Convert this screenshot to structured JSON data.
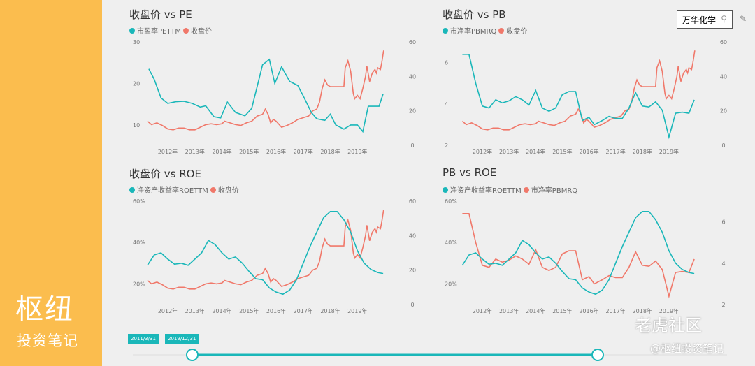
{
  "brand": {
    "name": "枢纽",
    "subtitle": "投资笔记"
  },
  "search": {
    "value": "万华化学"
  },
  "slider": {
    "start": "2011/3/31",
    "end": "2019/12/31"
  },
  "watermark": {
    "site": "老虎社区",
    "author": "@枢纽投资笔记"
  },
  "colors": {
    "teal": "#1ab7b9",
    "salmon": "#f0786a"
  },
  "price": [
    [
      2011.25,
      14
    ],
    [
      2011.4,
      12
    ],
    [
      2011.6,
      13
    ],
    [
      2011.8,
      11.5
    ],
    [
      2012.0,
      9.5
    ],
    [
      2012.2,
      9
    ],
    [
      2012.4,
      10
    ],
    [
      2012.6,
      10
    ],
    [
      2012.8,
      9
    ],
    [
      2013.0,
      9
    ],
    [
      2013.2,
      10.5
    ],
    [
      2013.4,
      12
    ],
    [
      2013.6,
      12.5
    ],
    [
      2013.8,
      12
    ],
    [
      2014.0,
      12.5
    ],
    [
      2014.1,
      14
    ],
    [
      2014.3,
      13
    ],
    [
      2014.5,
      12
    ],
    [
      2014.7,
      11.5
    ],
    [
      2014.9,
      13
    ],
    [
      2015.1,
      14
    ],
    [
      2015.3,
      17
    ],
    [
      2015.5,
      18
    ],
    [
      2015.6,
      21
    ],
    [
      2015.7,
      18
    ],
    [
      2015.8,
      13
    ],
    [
      2015.9,
      15
    ],
    [
      2016.0,
      14
    ],
    [
      2016.2,
      10.5
    ],
    [
      2016.4,
      11.5
    ],
    [
      2016.6,
      13
    ],
    [
      2016.8,
      15
    ],
    [
      2017.0,
      16
    ],
    [
      2017.2,
      17
    ],
    [
      2017.35,
      20
    ],
    [
      2017.5,
      21
    ],
    [
      2017.6,
      25
    ],
    [
      2017.7,
      33
    ],
    [
      2017.8,
      38
    ],
    [
      2017.9,
      35
    ],
    [
      2018.0,
      34
    ],
    [
      2018.5,
      34
    ],
    [
      2018.55,
      45
    ],
    [
      2018.65,
      49
    ],
    [
      2018.75,
      43
    ],
    [
      2018.85,
      30
    ],
    [
      2018.9,
      27
    ],
    [
      2019.0,
      29
    ],
    [
      2019.1,
      27
    ],
    [
      2019.2,
      33
    ],
    [
      2019.3,
      40
    ],
    [
      2019.35,
      46
    ],
    [
      2019.45,
      37
    ],
    [
      2019.55,
      42
    ],
    [
      2019.65,
      44
    ],
    [
      2019.7,
      42
    ],
    [
      2019.75,
      45
    ],
    [
      2019.85,
      44
    ],
    [
      2019.9,
      48
    ],
    [
      2019.97,
      55
    ]
  ],
  "pe": [
    [
      2011.3,
      23.5
    ],
    [
      2011.5,
      21
    ],
    [
      2011.75,
      16.5
    ],
    [
      2012.0,
      15.2
    ],
    [
      2012.3,
      15.6
    ],
    [
      2012.6,
      15.7
    ],
    [
      2012.9,
      15.2
    ],
    [
      2013.2,
      14.3
    ],
    [
      2013.4,
      14.6
    ],
    [
      2013.7,
      12
    ],
    [
      2013.95,
      11.7
    ],
    [
      2014.2,
      15.5
    ],
    [
      2014.5,
      13
    ],
    [
      2014.85,
      12.2
    ],
    [
      2015.1,
      14
    ],
    [
      2015.5,
      24.5
    ],
    [
      2015.75,
      25.8
    ],
    [
      2015.95,
      20
    ],
    [
      2016.2,
      24
    ],
    [
      2016.5,
      20.5
    ],
    [
      2016.8,
      19.5
    ],
    [
      2017.0,
      17
    ],
    [
      2017.3,
      13
    ],
    [
      2017.5,
      11.5
    ],
    [
      2017.8,
      11.1
    ],
    [
      2018.0,
      12.6
    ],
    [
      2018.2,
      10
    ],
    [
      2018.5,
      9
    ],
    [
      2018.75,
      10
    ],
    [
      2019.0,
      10
    ],
    [
      2019.2,
      8.4
    ],
    [
      2019.4,
      14.5
    ],
    [
      2019.8,
      14.5
    ],
    [
      2019.95,
      17.5
    ]
  ],
  "pb": [
    [
      2011.25,
      6.4
    ],
    [
      2011.5,
      6.4
    ],
    [
      2011.75,
      5
    ],
    [
      2012.0,
      3.9
    ],
    [
      2012.25,
      3.8
    ],
    [
      2012.5,
      4.2
    ],
    [
      2012.75,
      4.05
    ],
    [
      2013.0,
      4.15
    ],
    [
      2013.25,
      4.35
    ],
    [
      2013.5,
      4.2
    ],
    [
      2013.75,
      3.95
    ],
    [
      2014.0,
      4.65
    ],
    [
      2014.25,
      3.8
    ],
    [
      2014.5,
      3.65
    ],
    [
      2014.75,
      3.8
    ],
    [
      2015.0,
      4.45
    ],
    [
      2015.25,
      4.6
    ],
    [
      2015.5,
      4.6
    ],
    [
      2015.75,
      3.2
    ],
    [
      2016.0,
      3.35
    ],
    [
      2016.2,
      3.0
    ],
    [
      2016.5,
      3.2
    ],
    [
      2016.75,
      3.4
    ],
    [
      2017.0,
      3.3
    ],
    [
      2017.25,
      3.3
    ],
    [
      2017.5,
      3.8
    ],
    [
      2017.75,
      4.55
    ],
    [
      2018.0,
      3.9
    ],
    [
      2018.25,
      3.85
    ],
    [
      2018.5,
      4.1
    ],
    [
      2018.75,
      3.7
    ],
    [
      2019.0,
      2.4
    ],
    [
      2019.25,
      3.55
    ],
    [
      2019.5,
      3.6
    ],
    [
      2019.75,
      3.55
    ],
    [
      2019.95,
      4.2
    ]
  ],
  "roe": [
    [
      2011.25,
      29
    ],
    [
      2011.5,
      34
    ],
    [
      2011.75,
      35
    ],
    [
      2012.0,
      32
    ],
    [
      2012.25,
      29.5
    ],
    [
      2012.5,
      30
    ],
    [
      2012.75,
      29
    ],
    [
      2013.0,
      32
    ],
    [
      2013.25,
      35
    ],
    [
      2013.5,
      41
    ],
    [
      2013.75,
      39
    ],
    [
      2014.0,
      35
    ],
    [
      2014.25,
      32
    ],
    [
      2014.5,
      33
    ],
    [
      2014.75,
      30
    ],
    [
      2015.0,
      26
    ],
    [
      2015.25,
      22.5
    ],
    [
      2015.5,
      22
    ],
    [
      2015.75,
      18
    ],
    [
      2016.0,
      16
    ],
    [
      2016.25,
      15
    ],
    [
      2016.5,
      17
    ],
    [
      2016.75,
      22
    ],
    [
      2017.0,
      30
    ],
    [
      2017.25,
      38
    ],
    [
      2017.5,
      45
    ],
    [
      2017.75,
      52
    ],
    [
      2018.0,
      55
    ],
    [
      2018.25,
      55
    ],
    [
      2018.5,
      51
    ],
    [
      2018.75,
      45
    ],
    [
      2019.0,
      36
    ],
    [
      2019.25,
      30
    ],
    [
      2019.5,
      27
    ],
    [
      2019.75,
      25.5
    ],
    [
      2019.95,
      25
    ]
  ],
  "years": [
    "2012年",
    "2013年",
    "2014年",
    "2015年",
    "2016年",
    "2017年",
    "2018年",
    "2019年"
  ],
  "charts": [
    {
      "title": "收盘价 vs PE",
      "legend": [
        "市盈率PETTM",
        "收盘价"
      ],
      "left": {
        "series": "pe",
        "lim": [
          5.1,
          30
        ],
        "ticks": [
          "10",
          "20",
          "30"
        ],
        "tickvals": [
          10,
          20,
          30
        ]
      },
      "right": {
        "series": "price",
        "lim": [
          0,
          60
        ],
        "ticks": [
          "0",
          "20",
          "40",
          "60"
        ],
        "tickvals": [
          0,
          20,
          40,
          60
        ]
      }
    },
    {
      "title": "收盘价 vs PB",
      "legend": [
        "市净率PBMRQ",
        "收盘价"
      ],
      "left": {
        "series": "pb",
        "lim": [
          2,
          7
        ],
        "ticks": [
          "2",
          "4",
          "6"
        ],
        "tickvals": [
          2,
          4,
          6
        ]
      },
      "right": {
        "series": "price",
        "lim": [
          0,
          60
        ],
        "ticks": [
          "0",
          "20",
          "40",
          "60"
        ],
        "tickvals": [
          0,
          20,
          40,
          60
        ]
      }
    },
    {
      "title": "收盘价 vs ROE",
      "legend": [
        "净资产收益率ROETTM",
        "收盘价"
      ],
      "left": {
        "series": "roe",
        "lim": [
          10,
          60
        ],
        "ticks": [
          "20%",
          "40%",
          "60%"
        ],
        "tickvals": [
          20,
          40,
          60
        ]
      },
      "right": {
        "series": "price",
        "lim": [
          0,
          60
        ],
        "ticks": [
          "0",
          "20",
          "40",
          "60"
        ],
        "tickvals": [
          0,
          20,
          40,
          60
        ]
      }
    },
    {
      "title": "PB vs ROE",
      "legend": [
        "净资产收益率ROETTM",
        "市净率PBMRQ"
      ],
      "left": {
        "series": "roe",
        "lim": [
          10,
          60
        ],
        "ticks": [
          "20%",
          "40%",
          "60%"
        ],
        "tickvals": [
          20,
          40,
          60
        ]
      },
      "right": {
        "series": "pb",
        "lim": [
          2,
          7
        ],
        "ticks": [
          "2",
          "4",
          "6"
        ],
        "tickvals": [
          2,
          4,
          6
        ]
      }
    }
  ]
}
